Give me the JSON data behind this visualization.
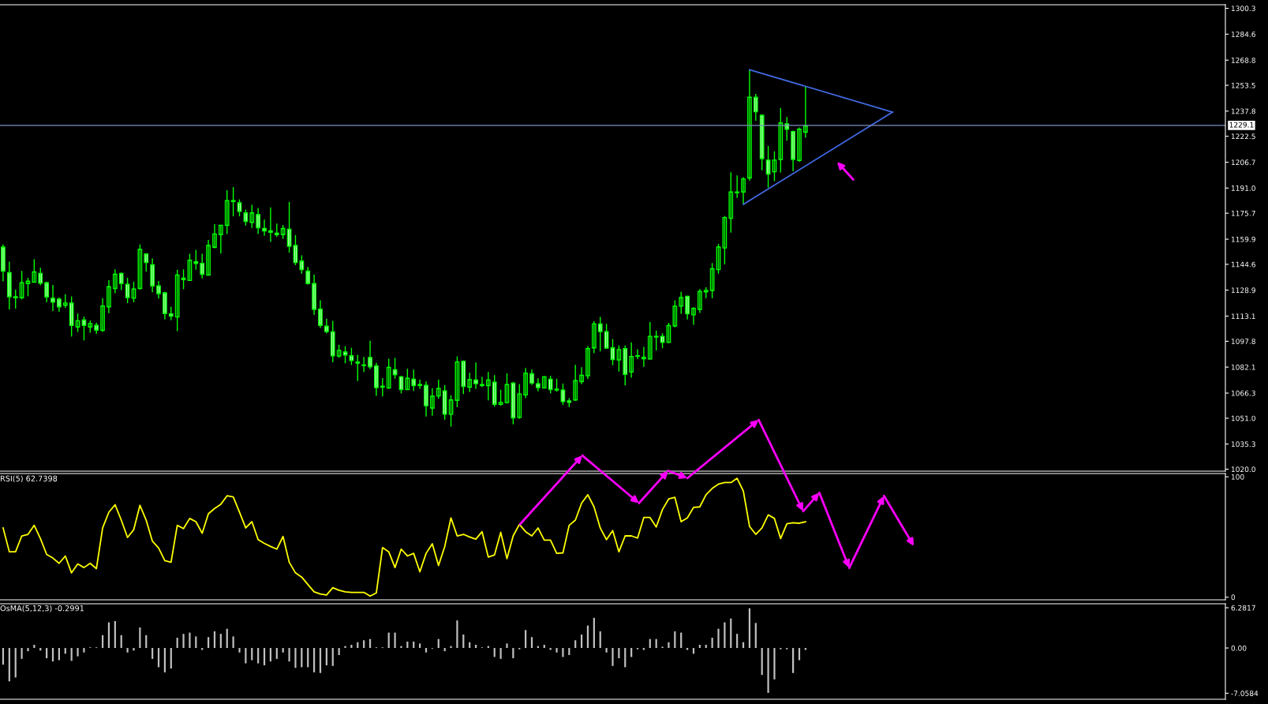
{
  "chart_data": [
    {
      "type": "candlestick",
      "categories": [
        null,
        null,
        null,
        null,
        null,
        null,
        null,
        null,
        null,
        null,
        null,
        null,
        null,
        null,
        null,
        null,
        null,
        null,
        null,
        null,
        null,
        null,
        null,
        null,
        null,
        null,
        null,
        null,
        null,
        null,
        null,
        null,
        null,
        null,
        null,
        null,
        null,
        null,
        null,
        null,
        null,
        null,
        null,
        null,
        null,
        null,
        null,
        null,
        null,
        null,
        null,
        null,
        null,
        null,
        null,
        null,
        null,
        null,
        null,
        null,
        null,
        null,
        null,
        null,
        null,
        null,
        null,
        null,
        null,
        null,
        null,
        null,
        null,
        null,
        null,
        null,
        null,
        null,
        null,
        null,
        null,
        null,
        null,
        null,
        null,
        null,
        null,
        null,
        null,
        null,
        null,
        null,
        null,
        null,
        null,
        null,
        null,
        null,
        null,
        null,
        null,
        null,
        null,
        null,
        null,
        null,
        null,
        null,
        null,
        null,
        null,
        null,
        null,
        null,
        null,
        null,
        null,
        null,
        null,
        null,
        null,
        null,
        null,
        null,
        null,
        null,
        null,
        null,
        null,
        null,
        null,
        null,
        null,
        null,
        null,
        null,
        null,
        null,
        null,
        null,
        null,
        null,
        null,
        null,
        null,
        null,
        null,
        null,
        null,
        null,
        null,
        null,
        null,
        null,
        null,
        null,
        null,
        null,
        null,
        null,
        null,
        null,
        null,
        null,
        null,
        null,
        null,
        null,
        null,
        null,
        null,
        null,
        null,
        null,
        null,
        null,
        null,
        null,
        null,
        null,
        null,
        null,
        null,
        null,
        null,
        null,
        null,
        null,
        null,
        null,
        null,
        null,
        null,
        null,
        null,
        null,
        null
      ],
      "ohlc": [
        [
          1155.1,
          1156.7,
          1134.2,
          1140.5
        ],
        [
          1139.5,
          1146.3,
          1117.2,
          1124.9
        ],
        [
          1124.9,
          1129.2,
          1117.7,
          1124.3
        ],
        [
          1124.3,
          1140.6,
          1123.3,
          1133.4
        ],
        [
          1132.9,
          1136.4,
          1125.2,
          1134.4
        ],
        [
          1133.7,
          1147.7,
          1133.5,
          1140.0
        ],
        [
          1139.1,
          1142.5,
          1131.8,
          1133.2
        ],
        [
          1133.4,
          1134.0,
          1121.5,
          1124.8
        ],
        [
          1124.0,
          1132.1,
          1116.3,
          1121.6
        ],
        [
          1123.5,
          1124.4,
          1115.8,
          1118.8
        ],
        [
          1119.7,
          1126.5,
          1118.1,
          1121.1
        ],
        [
          1121.1,
          1125.1,
          1100.7,
          1107.5
        ],
        [
          1106.5,
          1114.7,
          1103.5,
          1110.3
        ],
        [
          1110.8,
          1112.8,
          1098.3,
          1107.5
        ],
        [
          1106.5,
          1110.4,
          1103.0,
          1108.6
        ],
        [
          1107.5,
          1109.0,
          1102.3,
          1104.6
        ],
        [
          1104.5,
          1124.1,
          1103.5,
          1119.3
        ],
        [
          1118.8,
          1135.0,
          1114.8,
          1131.0
        ],
        [
          1129.9,
          1141.6,
          1127.1,
          1138.6
        ],
        [
          1139.1,
          1139.7,
          1129.0,
          1132.9
        ],
        [
          1132.5,
          1136.4,
          1121.0,
          1124.4
        ],
        [
          1124.0,
          1134.0,
          1121.5,
          1129.6
        ],
        [
          1129.9,
          1156.7,
          1129.2,
          1153.7
        ],
        [
          1150.9,
          1151.2,
          1140.3,
          1145.7
        ],
        [
          1144.3,
          1148.2,
          1127.6,
          1131.5
        ],
        [
          1131.5,
          1134.5,
          1123.8,
          1126.8
        ],
        [
          1127.3,
          1127.9,
          1111.1,
          1114.7
        ],
        [
          1114.5,
          1118.9,
          1110.6,
          1113.1
        ],
        [
          1112.6,
          1141.3,
          1104.0,
          1138.1
        ],
        [
          1136.2,
          1141.6,
          1129.5,
          1135.3
        ],
        [
          1134.8,
          1151.0,
          1134.5,
          1147.1
        ],
        [
          1146.1,
          1153.4,
          1141.3,
          1145.2
        ],
        [
          1145.2,
          1151.0,
          1136.1,
          1138.6
        ],
        [
          1138.1,
          1159.5,
          1137.8,
          1156.1
        ],
        [
          1155.0,
          1169.0,
          1154.3,
          1163.1
        ],
        [
          1162.7,
          1168.5,
          1151.2,
          1168.3
        ],
        [
          1168.3,
          1189.7,
          1163.0,
          1183.4
        ],
        [
          1183.4,
          1191.6,
          1173.8,
          1182.8
        ],
        [
          1182.0,
          1184.1,
          1173.8,
          1176.8
        ],
        [
          1175.9,
          1177.9,
          1168.2,
          1170.7
        ],
        [
          1170.1,
          1180.8,
          1166.8,
          1175.9
        ],
        [
          1174.9,
          1178.9,
          1163.0,
          1166.9
        ],
        [
          1166.4,
          1171.8,
          1162.0,
          1165.0
        ],
        [
          1165.0,
          1179.3,
          1158.3,
          1164.1
        ],
        [
          1163.6,
          1169.4,
          1161.4,
          1162.7
        ],
        [
          1162.7,
          1168.5,
          1160.1,
          1166.4
        ],
        [
          1166.0,
          1182.6,
          1151.7,
          1155.6
        ],
        [
          1156.1,
          1162.4,
          1144.1,
          1145.7
        ],
        [
          1146.6,
          1150.1,
          1138.9,
          1141.4
        ],
        [
          1140.5,
          1143.0,
          1132.3,
          1132.9
        ],
        [
          1132.9,
          1138.3,
          1113.9,
          1117.2
        ],
        [
          1117.4,
          1122.7,
          1105.9,
          1107.5
        ],
        [
          1107.0,
          1111.4,
          1102.6,
          1103.7
        ],
        [
          1103.6,
          1110.3,
          1085.0,
          1089.0
        ],
        [
          1088.8,
          1095.7,
          1087.7,
          1092.3
        ],
        [
          1091.3,
          1094.8,
          1084.4,
          1089.4
        ],
        [
          1089.0,
          1093.8,
          1083.4,
          1086.1
        ],
        [
          1085.2,
          1089.6,
          1073.7,
          1084.5
        ],
        [
          1083.4,
          1088.3,
          1079.2,
          1083.1
        ],
        [
          1088.0,
          1098.1,
          1080.8,
          1082.3
        ],
        [
          1082.8,
          1084.7,
          1064.7,
          1069.6
        ],
        [
          1070.5,
          1075.4,
          1064.3,
          1069.9
        ],
        [
          1069.4,
          1087.2,
          1069.0,
          1081.9
        ],
        [
          1080.5,
          1087.7,
          1075.1,
          1077.5
        ],
        [
          1076.2,
          1076.8,
          1066.1,
          1068.5
        ],
        [
          1068.5,
          1081.1,
          1068.3,
          1075.3
        ],
        [
          1074.8,
          1080.6,
          1067.6,
          1070.9
        ],
        [
          1071.5,
          1074.5,
          1068.8,
          1070.9
        ],
        [
          1071.0,
          1073.4,
          1052.0,
          1058.6
        ],
        [
          1057.2,
          1069.3,
          1052.5,
          1064.4
        ],
        [
          1064.6,
          1074.5,
          1062.8,
          1069.1
        ],
        [
          1067.7,
          1071.2,
          1050.1,
          1053.4
        ],
        [
          1053.4,
          1065.0,
          1045.9,
          1062.1
        ],
        [
          1061.9,
          1088.6,
          1057.7,
          1085.2
        ],
        [
          1085.7,
          1086.1,
          1065.7,
          1070.4
        ],
        [
          1069.9,
          1078.7,
          1066.9,
          1074.5
        ],
        [
          1074.3,
          1084.9,
          1068.8,
          1072.0
        ],
        [
          1071.5,
          1076.2,
          1069.9,
          1070.9
        ],
        [
          1070.9,
          1079.2,
          1061.9,
          1074.3
        ],
        [
          1072.9,
          1077.2,
          1058.1,
          1059.5
        ],
        [
          1059.4,
          1068.3,
          1058.6,
          1060.6
        ],
        [
          1060.5,
          1078.3,
          1059.9,
          1071.5
        ],
        [
          1072.4,
          1073.1,
          1047.3,
          1051.2
        ],
        [
          1051.5,
          1071.7,
          1050.6,
          1065.8
        ],
        [
          1065.2,
          1081.6,
          1063.2,
          1078.3
        ],
        [
          1078.1,
          1080.6,
          1071.2,
          1072.4
        ],
        [
          1072.0,
          1075.3,
          1067.4,
          1069.6
        ],
        [
          1069.4,
          1076.7,
          1069.2,
          1076.2
        ],
        [
          1074.8,
          1076.8,
          1066.1,
          1068.5
        ],
        [
          1068.7,
          1075.0,
          1067.1,
          1068.2
        ],
        [
          1068.2,
          1072.1,
          1059.1,
          1061.1
        ],
        [
          1061.6,
          1063.2,
          1057.8,
          1060.6
        ],
        [
          1062.1,
          1083.5,
          1061.5,
          1073.9
        ],
        [
          1073.3,
          1082.1,
          1071.7,
          1077.2
        ],
        [
          1076.8,
          1094.9,
          1074.9,
          1093.3
        ],
        [
          1093.8,
          1110.0,
          1090.6,
          1108.4
        ],
        [
          1108.4,
          1112.6,
          1091.7,
          1103.7
        ],
        [
          1103.7,
          1108.4,
          1093.3,
          1093.6
        ],
        [
          1093.8,
          1099.1,
          1083.2,
          1086.7
        ],
        [
          1086.5,
          1095.3,
          1079.4,
          1092.8
        ],
        [
          1093.3,
          1095.3,
          1071.0,
          1077.7
        ],
        [
          1079.1,
          1097.2,
          1075.7,
          1088.6
        ],
        [
          1089.0,
          1093.0,
          1087.0,
          1088.7
        ],
        [
          1087.2,
          1094.4,
          1082.3,
          1088.1
        ],
        [
          1087.0,
          1109.5,
          1086.7,
          1100.8
        ],
        [
          1100.8,
          1104.3,
          1092.2,
          1100.4
        ],
        [
          1100.8,
          1102.7,
          1093.6,
          1097.1
        ],
        [
          1097.1,
          1109.0,
          1096.8,
          1107.4
        ],
        [
          1107.1,
          1122.7,
          1106.3,
          1119.2
        ],
        [
          1119.2,
          1127.9,
          1114.4,
          1124.4
        ],
        [
          1125.2,
          1125.5,
          1111.1,
          1114.5
        ],
        [
          1113.9,
          1118.5,
          1107.8,
          1117.8
        ],
        [
          1117.2,
          1129.6,
          1115.0,
          1128.2
        ],
        [
          1127.9,
          1130.7,
          1124.0,
          1128.8
        ],
        [
          1128.7,
          1145.4,
          1124.0,
          1141.9
        ],
        [
          1141.4,
          1157.0,
          1138.9,
          1155.1
        ],
        [
          1154.6,
          1174.0,
          1144.6,
          1173.0
        ],
        [
          1172.6,
          1200.6,
          1163.9,
          1188.6
        ],
        [
          1188.6,
          1198.7,
          1185.0,
          1188.1
        ],
        [
          1188.6,
          1197.6,
          1181.4,
          1196.6
        ],
        [
          1197.1,
          1263.0,
          1195.5,
          1246.2
        ],
        [
          1246.2,
          1248.2,
          1231.9,
          1237.4
        ],
        [
          1235.3,
          1235.6,
          1201.8,
          1208.9
        ],
        [
          1208.0,
          1216.6,
          1191.3,
          1199.5
        ],
        [
          1200.9,
          1213.3,
          1195.2,
          1208.0
        ],
        [
          1208.4,
          1239.7,
          1200.4,
          1230.6
        ],
        [
          1230.1,
          1234.2,
          1219.8,
          1226.8
        ],
        [
          1225.4,
          1225.9,
          1201.2,
          1208.4
        ],
        [
          1207.8,
          1227.8,
          1207.0,
          1226.8
        ],
        [
          1225.0,
          1252.8,
          1221.6,
          1228.7
        ],
        null,
        null,
        null,
        null,
        null,
        null,
        null,
        null,
        null,
        null,
        null,
        null,
        null,
        null,
        null,
        null,
        null,
        null,
        null,
        null,
        null,
        null,
        null,
        null,
        null,
        null,
        null,
        null,
        null,
        null,
        null,
        null,
        null,
        null,
        null,
        null,
        null,
        null,
        null,
        null,
        null,
        null,
        null,
        null,
        null,
        null,
        null,
        null,
        null,
        null,
        null,
        null,
        null,
        null,
        null,
        null,
        null,
        null,
        null,
        null,
        null,
        null,
        null,
        null,
        null,
        null,
        null
      ],
      "series": [
        {
          "type": "line",
          "color": "#4169e1",
          "values": [
            null,
            null,
            null,
            null,
            null,
            null,
            null,
            null,
            null,
            null,
            null,
            null,
            null,
            null,
            null,
            null,
            null,
            null,
            null,
            null,
            null,
            null,
            null,
            null,
            null,
            null,
            null,
            null,
            null,
            null,
            null,
            null,
            null,
            null,
            null,
            null,
            null,
            null,
            null,
            null,
            null,
            null,
            null,
            null,
            null,
            null,
            null,
            null,
            null,
            null,
            null,
            null,
            null,
            null,
            null,
            null,
            null,
            null,
            null,
            null,
            null,
            null,
            null,
            null,
            null,
            null,
            null,
            null,
            null,
            null,
            null,
            null,
            null,
            null,
            null,
            null,
            null,
            null,
            null,
            null,
            null,
            null,
            null,
            null,
            null,
            null,
            null,
            null,
            null,
            null,
            null,
            null,
            null,
            null,
            null,
            null,
            null,
            null,
            null,
            null,
            null,
            null,
            null,
            null,
            null,
            null,
            null,
            null,
            null,
            null,
            null,
            null,
            null,
            null,
            null,
            null,
            null,
            null,
            null,
            null,
            1263.0,
            null,
            null,
            null,
            null,
            null,
            null,
            null,
            null,
            null,
            null,
            null,
            null,
            null,
            null,
            null,
            null,
            null,
            null,
            null,
            null,
            null,
            null,
            1237.2,
            null,
            null,
            null,
            null,
            null,
            null,
            null,
            null,
            null,
            null,
            null,
            null,
            null,
            null,
            null,
            null,
            null,
            null,
            null,
            null,
            null,
            null,
            null,
            null,
            null,
            null,
            null,
            null,
            null,
            null,
            null,
            null,
            null,
            null,
            null,
            null,
            null,
            null,
            null,
            null,
            null,
            null,
            null,
            null,
            null,
            null,
            null,
            null,
            null,
            null,
            null,
            null,
            null
          ]
        },
        {
          "type": "line",
          "color": "#4169e1",
          "values": [
            null,
            null,
            null,
            null,
            null,
            null,
            null,
            null,
            null,
            null,
            null,
            null,
            null,
            null,
            null,
            null,
            null,
            null,
            null,
            null,
            null,
            null,
            null,
            null,
            null,
            null,
            null,
            null,
            null,
            null,
            null,
            null,
            null,
            null,
            null,
            null,
            null,
            null,
            null,
            null,
            null,
            null,
            null,
            null,
            null,
            null,
            null,
            null,
            null,
            null,
            null,
            null,
            null,
            null,
            null,
            null,
            null,
            null,
            null,
            null,
            null,
            null,
            null,
            null,
            null,
            null,
            null,
            null,
            null,
            null,
            null,
            null,
            null,
            null,
            null,
            null,
            null,
            null,
            null,
            null,
            null,
            null,
            null,
            null,
            null,
            null,
            null,
            null,
            null,
            null,
            null,
            null,
            null,
            null,
            null,
            null,
            null,
            null,
            null,
            null,
            null,
            null,
            null,
            null,
            null,
            null,
            null,
            null,
            null,
            null,
            null,
            null,
            null,
            null,
            null,
            null,
            null,
            null,
            null,
            1181.1,
            null,
            null,
            null,
            null,
            null,
            null,
            null,
            null,
            null,
            null,
            null,
            null,
            null,
            null,
            null,
            null,
            null,
            null,
            null,
            null,
            null,
            null,
            null,
            1237.2,
            null,
            null,
            null,
            null,
            null,
            null,
            null,
            null,
            null,
            null,
            null,
            null,
            null,
            null,
            null,
            null,
            null,
            null,
            null,
            null,
            null,
            null,
            null,
            null,
            null,
            null,
            null,
            null,
            null,
            null,
            null,
            null,
            null,
            null,
            null,
            null,
            null,
            null,
            null,
            null,
            null,
            null,
            null,
            null,
            null,
            null,
            null,
            null,
            null,
            null,
            null,
            null,
            null
          ]
        }
      ],
      "ref_lines": [
        {
          "axis": "y",
          "value": 1229.1,
          "label": "1229.1",
          "color": "#7f8fc0"
        }
      ],
      "ylim": [
        1018.8,
        1302.5
      ],
      "yticks": [
        {
          "value": 1020.0,
          "label": "1020.0"
        },
        1035.3,
        {
          "value": 1051.0,
          "label": "1051.0"
        },
        1066.3,
        1082.1,
        1097.8,
        1113.1,
        1128.9,
        1144.6,
        1159.9,
        1175.7,
        {
          "value": 1191.0,
          "label": "1191.0"
        },
        1206.7,
        1222.5,
        1237.8,
        1253.5,
        1268.8,
        1284.6,
        1300.3
      ],
      "tick_labels": "y"
    },
    {
      "type": "line",
      "title": "RSI(5) 62.7398",
      "categories": [
        null,
        null,
        null,
        null,
        null,
        null,
        null,
        null,
        null,
        null,
        null,
        null,
        null,
        null,
        null,
        null,
        null,
        null,
        null,
        null,
        null,
        null,
        null,
        null,
        null,
        null,
        null,
        null,
        null,
        null,
        null,
        null,
        null,
        null,
        null,
        null,
        null,
        null,
        null,
        null,
        null,
        null,
        null,
        null,
        null,
        null,
        null,
        null,
        null,
        null,
        null,
        null,
        null,
        null,
        null,
        null,
        null,
        null,
        null,
        null,
        null,
        null,
        null,
        null,
        null,
        null,
        null,
        null,
        null,
        null,
        null,
        null,
        null,
        null,
        null,
        null,
        null,
        null,
        null,
        null,
        null,
        null,
        null,
        null,
        null,
        null,
        null,
        null,
        null,
        null,
        null,
        null,
        null,
        null,
        null,
        null,
        null,
        null,
        null,
        null,
        null,
        null,
        null,
        null,
        null,
        null,
        null,
        null,
        null,
        null,
        null,
        null,
        null,
        null,
        null,
        null,
        null,
        null,
        null,
        null,
        null,
        null,
        null,
        null,
        null,
        null,
        null,
        null,
        null,
        null,
        null,
        null,
        null,
        null,
        null,
        null,
        null,
        null,
        null,
        null,
        null,
        null,
        null,
        null,
        null,
        null,
        null,
        null,
        null,
        null,
        null,
        null,
        null,
        null,
        null,
        null,
        null,
        null,
        null,
        null,
        null,
        null,
        null,
        null,
        null,
        null,
        null,
        null,
        null,
        null,
        null,
        null,
        null,
        null,
        null,
        null,
        null,
        null,
        null,
        null,
        null,
        null,
        null,
        null,
        null,
        null,
        null,
        null,
        null,
        null,
        null,
        null,
        null,
        null,
        null,
        null,
        null
      ],
      "series": [
        {
          "color": "#ffff00",
          "values": [
            57.5,
            37.7,
            37.7,
            50.9,
            52.2,
            59.7,
            48.7,
            35.5,
            32.5,
            28.1,
            34.2,
            20.2,
            27.6,
            24.6,
            28.1,
            23.7,
            57.5,
            70.6,
            76.8,
            64.0,
            49.6,
            56.1,
            76.3,
            64.0,
            46.5,
            40.8,
            30.3,
            29.0,
            59.7,
            57.0,
            65.4,
            62.7,
            53.1,
            69.3,
            73.7,
            77.2,
            84.2,
            83.3,
            70.6,
            57.5,
            62.7,
            47.8,
            44.7,
            42.1,
            39.9,
            50.4,
            29.0,
            20.2,
            16.7,
            10.5,
            4.4,
            2.6,
            1.8,
            7.9,
            5.7,
            4.4,
            4.0,
            4.0,
            4.0,
            0.9,
            3.5,
            41.2,
            37.7,
            24.6,
            39.9,
            34.2,
            36.4,
            21.1,
            36.4,
            44.3,
            26.3,
            42.1,
            65.8,
            50.9,
            52.2,
            50.0,
            48.2,
            54.4,
            33.3,
            35.1,
            53.9,
            32.0,
            50.9,
            60.5,
            54.4,
            50.9,
            57.5,
            47.4,
            47.4,
            36.4,
            36.8,
            59.7,
            64.0,
            78.1,
            85.1,
            75.0,
            57.5,
            47.8,
            55.3,
            37.7,
            50.9,
            50.9,
            49.1,
            66.2,
            66.2,
            58.3,
            72.8,
            81.6,
            82.9,
            62.7,
            65.8,
            74.6,
            75.0,
            85.1,
            90.4,
            93.9,
            95.2,
            95.2,
            98.7,
            88.2,
            58.8,
            52.2,
            57.5,
            68.4,
            65.4,
            48.7,
            61.0,
            61.8,
            61.4,
            62.7,
            null,
            null,
            null,
            null,
            null,
            null,
            null,
            null,
            null,
            null,
            null,
            null,
            null,
            null,
            null,
            null,
            null,
            null,
            null,
            null,
            null,
            null,
            null,
            null,
            null,
            null,
            null,
            null,
            null,
            null,
            null,
            null,
            null,
            null,
            null,
            null,
            null,
            null,
            null,
            null,
            null,
            null,
            null,
            null,
            null,
            null,
            null,
            null,
            null,
            null,
            null,
            null,
            null,
            null,
            null,
            null,
            null,
            null,
            null,
            null,
            null,
            null,
            null,
            null,
            null,
            null,
            null
          ]
        }
      ],
      "ylim": [
        -2.2,
        102.7
      ],
      "yticks": [
        0,
        100
      ],
      "tick_labels": "y"
    },
    {
      "type": "bar",
      "title": "OsMA(5,12,3) -0.2991",
      "categories": [
        null,
        null,
        null,
        null,
        null,
        null,
        null,
        null,
        null,
        null,
        null,
        null,
        null,
        null,
        null,
        null,
        null,
        null,
        null,
        null,
        null,
        null,
        null,
        null,
        null,
        null,
        null,
        null,
        null,
        null,
        null,
        null,
        null,
        null,
        null,
        null,
        null,
        null,
        null,
        null,
        null,
        null,
        null,
        null,
        null,
        null,
        null,
        null,
        null,
        null,
        null,
        null,
        null,
        null,
        null,
        null,
        null,
        null,
        null,
        null,
        null,
        null,
        null,
        null,
        null,
        null,
        null,
        null,
        null,
        null,
        null,
        null,
        null,
        null,
        null,
        null,
        null,
        null,
        null,
        null,
        null,
        null,
        null,
        null,
        null,
        null,
        null,
        null,
        null,
        null,
        null,
        null,
        null,
        null,
        null,
        null,
        null,
        null,
        null,
        null,
        null,
        null,
        null,
        null,
        null,
        null,
        null,
        null,
        null,
        null,
        null,
        null,
        null,
        null,
        null,
        null,
        null,
        null,
        null,
        null,
        null,
        null,
        null,
        null,
        null,
        null,
        null,
        null,
        null,
        null,
        null,
        null,
        null,
        null,
        null,
        null,
        null,
        null,
        null,
        null,
        null,
        null,
        null,
        null,
        null,
        null,
        null,
        null,
        null,
        null,
        null,
        null,
        null,
        null,
        null,
        null,
        null,
        null,
        null,
        null,
        null,
        null,
        null,
        null,
        null,
        null,
        null,
        null,
        null,
        null,
        null,
        null,
        null,
        null,
        null,
        null,
        null,
        null,
        null,
        null,
        null,
        null,
        null,
        null,
        null,
        null,
        null,
        null,
        null,
        null,
        null,
        null,
        null,
        null,
        null,
        null,
        null
      ],
      "color": "#c0c0c0",
      "values": [
        -2.6,
        -5.2,
        -4.6,
        -1.7,
        -0.5,
        0.5,
        -0.4,
        -1.6,
        -2.1,
        -1.9,
        -0.9,
        -2.0,
        -1.3,
        -0.7,
        0.1,
        0.1,
        2.0,
        4.0,
        4.2,
        2.0,
        -0.7,
        -0.4,
        3.2,
        2.0,
        -1.7,
        -3.0,
        -3.8,
        -3.2,
        1.6,
        2.2,
        2.4,
        1.8,
        -0.3,
        1.7,
        2.6,
        2.2,
        3.0,
        1.8,
        -0.7,
        -2.4,
        -1.9,
        -2.4,
        -2.7,
        -2.1,
        -1.7,
        -0.7,
        -2.1,
        -3.1,
        -3.0,
        -3.0,
        -3.8,
        -3.9,
        -2.7,
        -2.8,
        -1.1,
        0.3,
        0.5,
        0.9,
        1.2,
        1.4,
        0.1,
        0.1,
        2.4,
        2.4,
        0.3,
        1.0,
        1.0,
        0.7,
        -0.7,
        -0.1,
        1.4,
        -0.5,
        0.3,
        4.3,
        2.1,
        0.9,
        0.5,
        0.1,
        0.3,
        -1.4,
        -1.7,
        0.7,
        -1.6,
        -0.2,
        2.8,
        1.7,
        0.3,
        0.5,
        -0.3,
        -0.7,
        -1.4,
        -1.1,
        1.2,
        2.1,
        3.5,
        4.7,
        2.6,
        -0.7,
        -2.8,
        -1.6,
        -3.0,
        -1.4,
        -0.2,
        -0.3,
        1.4,
        1.4,
        0.2,
        0.9,
        2.6,
        2.4,
        -0.3,
        -0.9,
        0.5,
        0.5,
        1.6,
        3.0,
        4.0,
        4.6,
        2.2,
        0.9,
        6.2,
        3.9,
        -4.2,
        -7.0,
        -4.9,
        -0.2,
        -0.2,
        -3.9,
        -1.9,
        -0.3,
        null,
        null,
        null,
        null,
        null,
        null,
        null,
        null,
        null,
        null,
        null,
        null,
        null,
        null,
        null,
        null,
        null,
        null,
        null,
        null,
        null,
        null,
        null,
        null,
        null,
        null,
        null,
        null,
        null,
        null,
        null,
        null,
        null,
        null,
        null,
        null,
        null,
        null,
        null,
        null,
        null,
        null,
        null,
        null,
        null,
        null,
        null,
        null,
        null,
        null,
        null,
        null,
        null,
        null,
        null,
        null,
        null,
        null,
        null,
        null,
        null,
        null,
        null,
        null,
        null,
        null,
        null
      ],
      "ylim": [
        -8.0,
        6.9
      ],
      "yticks": [
        {
          "value": 6.2817,
          "label": "6.2817"
        },
        {
          "value": 0,
          "label": "0.00"
        },
        {
          "value": -7.0584,
          "label": "-7.0584"
        }
      ],
      "tick_labels": "y"
    }
  ]
}
